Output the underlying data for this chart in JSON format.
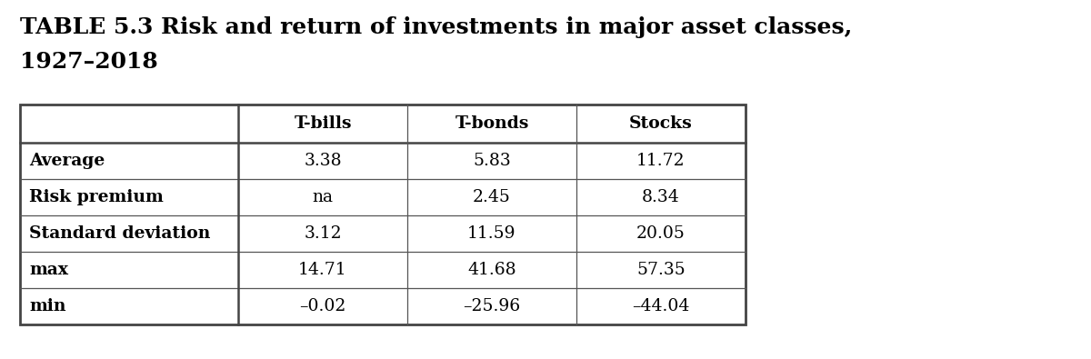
{
  "title_line1": "TABLE 5.3 Risk and return of investments in major asset classes,",
  "title_line2": "1927–2018",
  "col_headers": [
    "T-bills",
    "T-bonds",
    "Stocks"
  ],
  "row_headers": [
    "Average",
    "Risk premium",
    "Standard deviation",
    "max",
    "min"
  ],
  "table_data": [
    [
      "3.38",
      "5.83",
      "11.72"
    ],
    [
      "na",
      "2.45",
      "8.34"
    ],
    [
      "3.12",
      "11.59",
      "20.05"
    ],
    [
      "14.71",
      "41.68",
      "57.35"
    ],
    [
      "–0.02",
      "–25.96",
      "–44.04"
    ]
  ],
  "background_color": "#ffffff",
  "title_fontsize": 18,
  "header_fontsize": 13.5,
  "cell_fontsize": 13.5,
  "row_header_fontsize": 13.5
}
